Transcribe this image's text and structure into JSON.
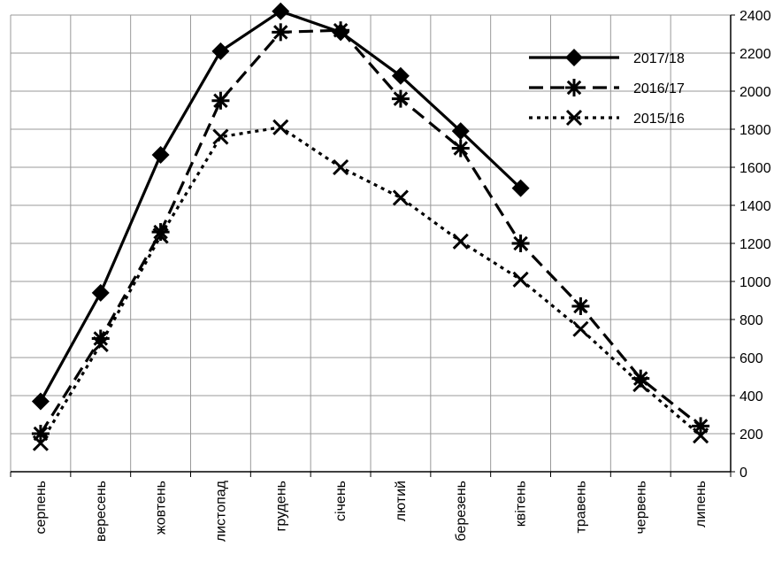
{
  "chart_data": {
    "type": "line",
    "title": "",
    "xlabel": "",
    "ylabel": "",
    "categories": [
      "серпень",
      "вересень",
      "жовтень",
      "листопад",
      "грудень",
      "січень",
      "лютий",
      "березень",
      "квітень",
      "травень",
      "червень",
      "липень"
    ],
    "ylim": [
      0,
      2400
    ],
    "ytick_step": 200,
    "y_axis_position": "right",
    "grid": true,
    "legend_position": "top-right",
    "series": [
      {
        "name": "2017/18",
        "line_style": "solid",
        "marker": "diamond",
        "color": "#000000",
        "values": [
          370,
          940,
          1665,
          2210,
          2420,
          2310,
          2080,
          1790,
          1490,
          null,
          null,
          null
        ]
      },
      {
        "name": "2016/17",
        "line_style": "dashed",
        "marker": "asterisk",
        "color": "#000000",
        "values": [
          200,
          700,
          1260,
          1950,
          2310,
          2320,
          1960,
          1700,
          1200,
          870,
          490,
          240
        ]
      },
      {
        "name": "2015/16",
        "line_style": "dotted",
        "marker": "x",
        "color": "#000000",
        "values": [
          150,
          670,
          1240,
          1760,
          1810,
          1600,
          1440,
          1210,
          1010,
          750,
          460,
          190
        ]
      }
    ]
  }
}
